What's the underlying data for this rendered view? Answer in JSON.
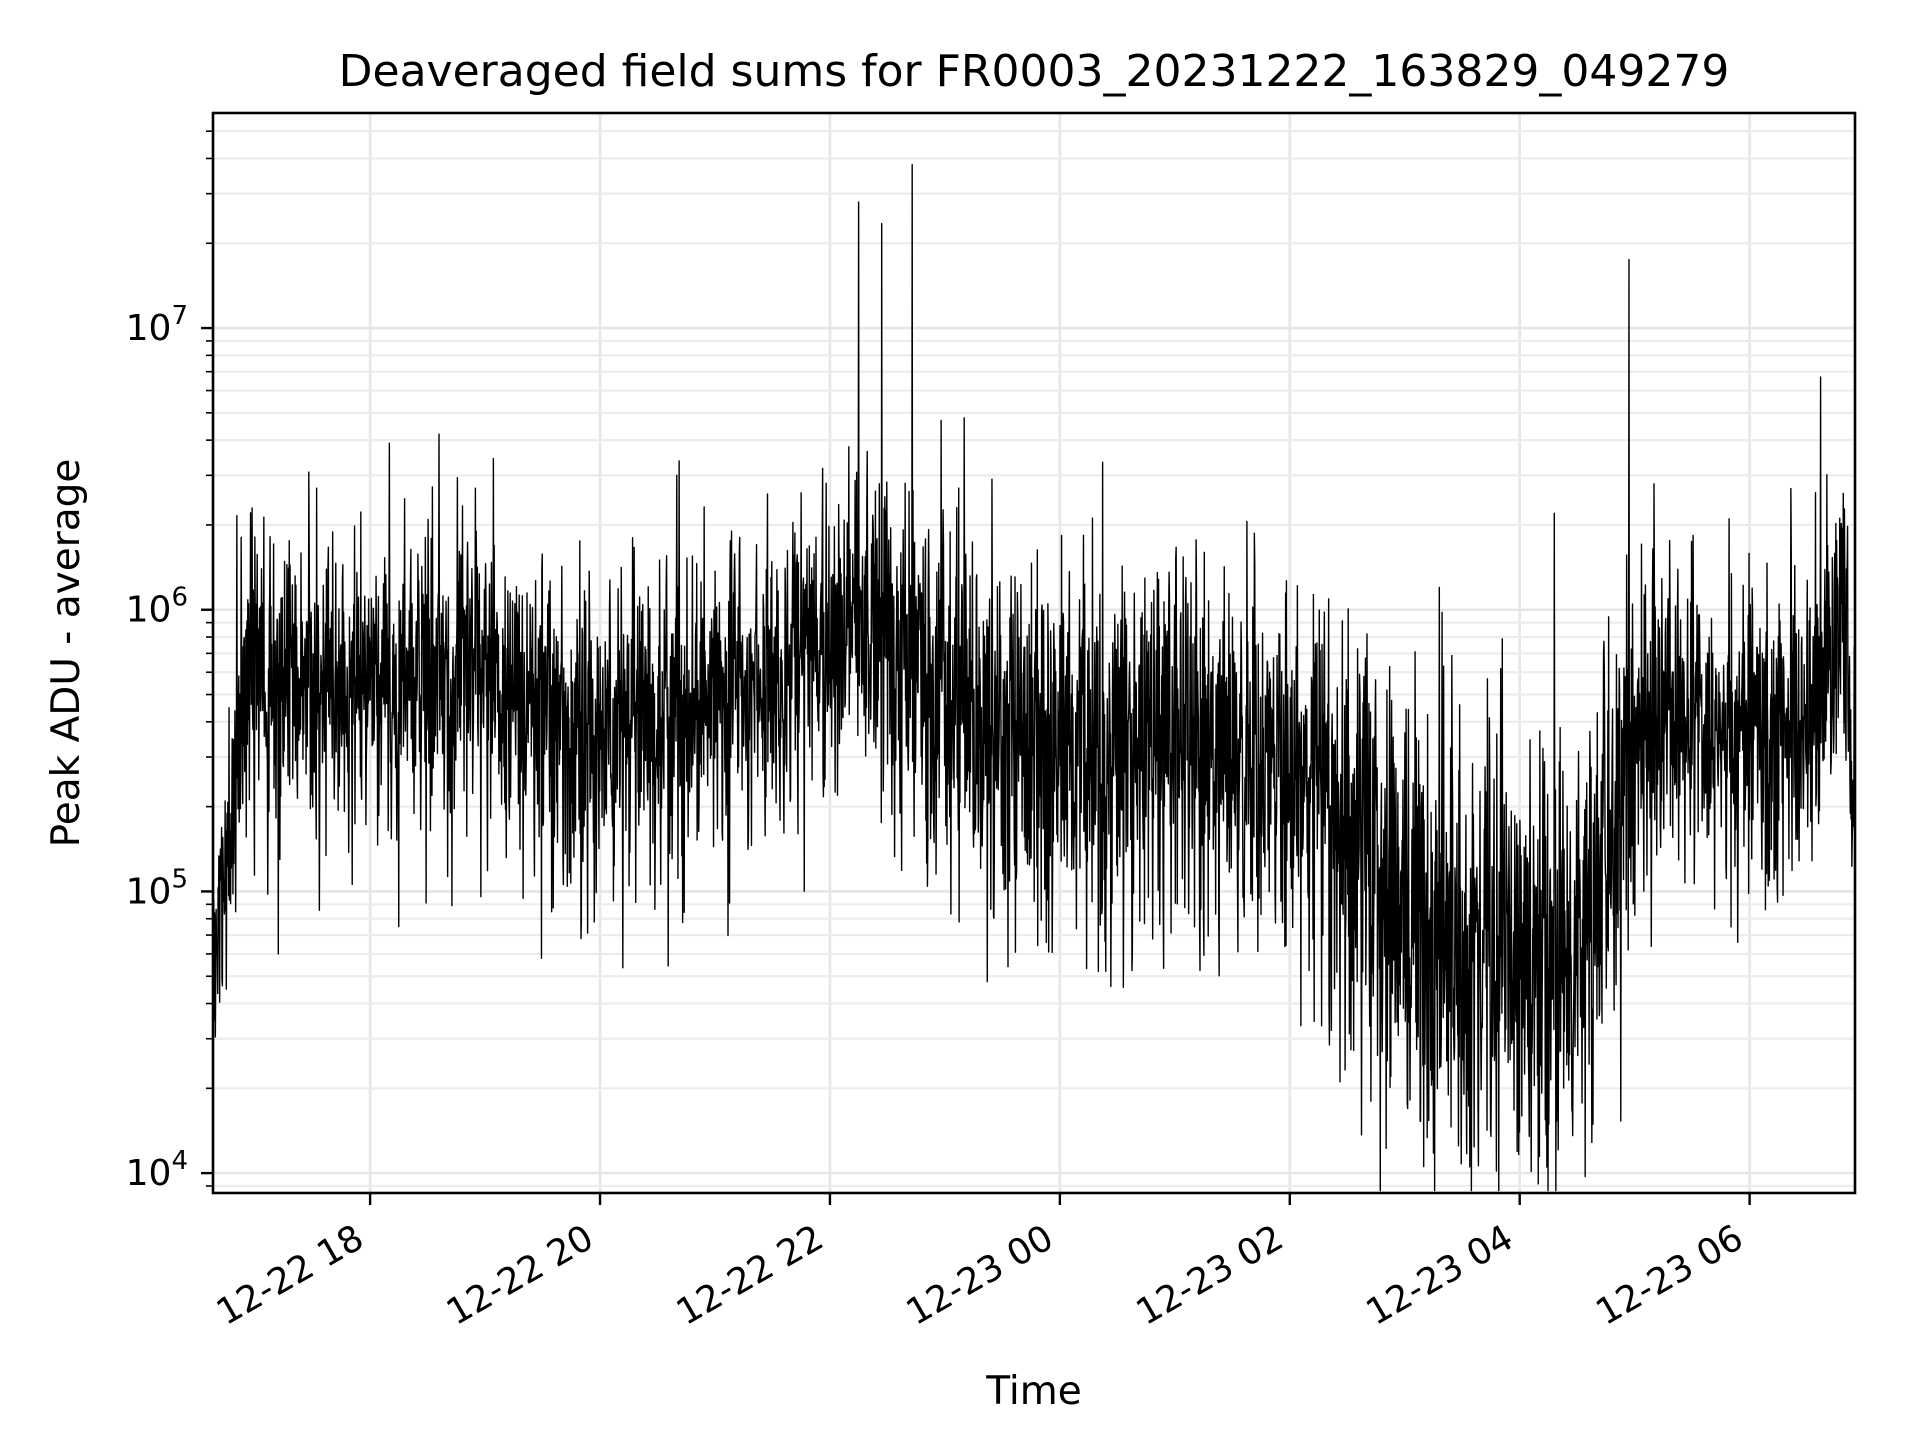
{
  "chart_data": {
    "type": "line",
    "title": "Deaveraged field sums for FR0003_20231222_163829_049279",
    "xlabel": "Time",
    "ylabel": "Peak ADU - average",
    "x_scale": "time",
    "y_scale": "log",
    "xlim": [
      "2023-12-22 16:38",
      "2023-12-23 06:55"
    ],
    "ylim": [
      8500,
      58000000
    ],
    "x_ticks": [
      {
        "value": "2023-12-22 18:00",
        "label": "12-22 18"
      },
      {
        "value": "2023-12-22 20:00",
        "label": "12-22 20"
      },
      {
        "value": "2023-12-22 22:00",
        "label": "12-22 22"
      },
      {
        "value": "2023-12-23 00:00",
        "label": "12-23 00"
      },
      {
        "value": "2023-12-23 02:00",
        "label": "12-23 02"
      },
      {
        "value": "2023-12-23 04:00",
        "label": "12-23 04"
      },
      {
        "value": "2023-12-23 06:00",
        "label": "12-23 06"
      }
    ],
    "y_ticks": [
      {
        "value": 10000,
        "base": "10",
        "exp": "4"
      },
      {
        "value": 100000,
        "base": "10",
        "exp": "5"
      },
      {
        "value": 1000000,
        "base": "10",
        "exp": "6"
      },
      {
        "value": 10000000,
        "base": "10",
        "exp": "7"
      }
    ],
    "grid": true,
    "line_color": "#000000",
    "series": [
      {
        "profile": {
          "x": [
            "2023-12-22 16:38",
            "2023-12-22 16:44",
            "2023-12-22 16:50",
            "2023-12-22 16:56",
            "2023-12-22 17:00",
            "2023-12-22 17:20",
            "2023-12-22 17:40",
            "2023-12-22 18:00",
            "2023-12-22 18:30",
            "2023-12-22 19:00",
            "2023-12-22 19:30",
            "2023-12-22 20:00",
            "2023-12-22 20:30",
            "2023-12-22 21:00",
            "2023-12-22 21:30",
            "2023-12-22 21:45",
            "2023-12-22 22:00",
            "2023-12-22 22:30",
            "2023-12-22 23:00",
            "2023-12-22 23:30",
            "2023-12-23 00:00",
            "2023-12-23 00:30",
            "2023-12-23 01:00",
            "2023-12-23 01:30",
            "2023-12-23 02:00",
            "2023-12-23 02:30",
            "2023-12-23 03:00",
            "2023-12-23 03:30",
            "2023-12-23 04:00",
            "2023-12-23 04:30",
            "2023-12-23 04:50",
            "2023-12-23 05:00",
            "2023-12-23 05:30",
            "2023-12-23 06:00",
            "2023-12-23 06:30",
            "2023-12-23 06:40",
            "2023-12-23 06:48",
            "2023-12-23 06:55"
          ],
          "median": [
            60000,
            120000,
            250000,
            500000,
            600000,
            550000,
            550000,
            600000,
            650000,
            600000,
            420000,
            380000,
            420000,
            500000,
            600000,
            650000,
            900000,
            850000,
            500000,
            350000,
            330000,
            330000,
            350000,
            330000,
            280000,
            180000,
            80000,
            55000,
            60000,
            70000,
            150000,
            380000,
            420000,
            350000,
            350000,
            500000,
            1100000,
            200000
          ],
          "spread": [
            0.3,
            0.35,
            0.4,
            0.42,
            0.45,
            0.45,
            0.45,
            0.45,
            0.45,
            0.45,
            0.45,
            0.48,
            0.45,
            0.45,
            0.45,
            0.45,
            0.45,
            0.45,
            0.5,
            0.55,
            0.55,
            0.55,
            0.55,
            0.55,
            0.55,
            0.6,
            0.62,
            0.62,
            0.62,
            0.62,
            0.6,
            0.45,
            0.45,
            0.45,
            0.45,
            0.45,
            0.5,
            0.6
          ]
        },
        "spikes": [
          {
            "x": "2023-12-22 17:32",
            "y": 2700000
          },
          {
            "x": "2023-12-22 18:10",
            "y": 3900000
          },
          {
            "x": "2023-12-22 18:36",
            "y": 4200000
          },
          {
            "x": "2023-12-22 18:55",
            "y": 2700000
          },
          {
            "x": "2023-12-22 20:40",
            "y": 3000000
          },
          {
            "x": "2023-12-22 21:45",
            "y": 2600000
          },
          {
            "x": "2023-12-22 22:15",
            "y": 28000000
          },
          {
            "x": "2023-12-22 22:27",
            "y": 23500000
          },
          {
            "x": "2023-12-22 22:43",
            "y": 38000000
          },
          {
            "x": "2023-12-22 22:58",
            "y": 4700000
          },
          {
            "x": "2023-12-22 23:10",
            "y": 4800000
          },
          {
            "x": "2023-12-23 03:18",
            "y": 1200000
          },
          {
            "x": "2023-12-23 04:18",
            "y": 2200000
          },
          {
            "x": "2023-12-23 04:57",
            "y": 17500000
          },
          {
            "x": "2023-12-23 05:10",
            "y": 2800000
          },
          {
            "x": "2023-12-23 06:37",
            "y": 6700000
          }
        ],
        "dips": [
          {
            "x": "2023-12-22 16:45",
            "y": 45000
          },
          {
            "x": "2023-12-22 17:12",
            "y": 60000
          },
          {
            "x": "2023-12-22 18:15",
            "y": 75000
          },
          {
            "x": "2023-12-22 19:50",
            "y": 68000
          },
          {
            "x": "2023-12-23 00:20",
            "y": 52000
          },
          {
            "x": "2023-12-23 03:28",
            "y": 12500
          },
          {
            "x": "2023-12-23 03:45",
            "y": 13500
          },
          {
            "x": "2023-12-23 04:05",
            "y": 13500
          }
        ]
      }
    ]
  }
}
